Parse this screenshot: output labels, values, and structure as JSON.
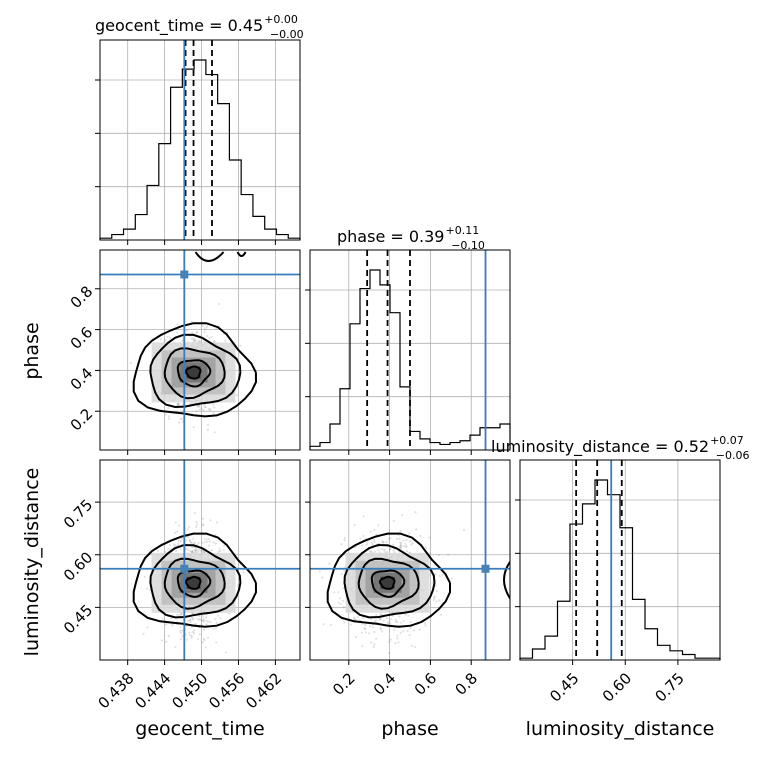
{
  "chart_data": {
    "type": "corner",
    "parameters": [
      {
        "key": "geocent_time",
        "label": "geocent_time",
        "title_main": "geocent_time = 0.45",
        "title_plus": "+0.00",
        "title_minus": "−0.00",
        "median": 0.4487,
        "q_low": 0.4474,
        "q_high": 0.4517,
        "truth": 0.4472,
        "range": [
          0.4335,
          0.466
        ],
        "ticks": [
          0.438,
          0.444,
          0.45,
          0.456,
          0.462
        ],
        "tick_labels": [
          "0.438",
          "0.444",
          "0.450",
          "0.456",
          "0.462"
        ],
        "hist_counts": [
          1,
          3,
          6,
          14,
          30,
          53,
          84,
          94,
          99,
          91,
          75,
          44,
          25,
          13,
          6,
          3,
          1
        ]
      },
      {
        "key": "phase",
        "label": "phase",
        "title_main": "phase = 0.39",
        "title_plus": "+0.11",
        "title_minus": "−0.10",
        "median": 0.39,
        "q_low": 0.29,
        "q_high": 0.5,
        "truth": 0.87,
        "range": [
          0.01,
          0.99
        ],
        "ticks": [
          0.2,
          0.4,
          0.6,
          0.8
        ],
        "tick_labels": [
          "0.2",
          "0.4",
          "0.6",
          "0.8"
        ],
        "hist_counts": [
          2,
          4,
          14,
          33,
          68,
          87,
          97,
          89,
          74,
          34,
          10,
          6,
          4,
          3,
          4,
          5,
          8,
          12,
          12,
          14
        ]
      },
      {
        "key": "luminosity_distance",
        "label": "luminosity_distance",
        "title_main": "luminosity_distance = 0.52",
        "title_plus": "+0.07",
        "title_minus": "−0.06",
        "median": 0.52,
        "q_low": 0.46,
        "q_high": 0.59,
        "truth": 0.56,
        "range": [
          0.3,
          0.87
        ],
        "ticks": [
          0.45,
          0.6,
          0.75
        ],
        "tick_labels": [
          "0.45",
          "0.60",
          "0.75"
        ],
        "hist_counts": [
          1,
          6,
          13,
          32,
          74,
          85,
          98,
          90,
          72,
          33,
          17,
          8,
          5,
          3,
          1,
          1
        ]
      }
    ],
    "pairs": [
      {
        "row": 1,
        "col": 0,
        "label": "phase vs geocent_time",
        "center": [
          0.4487,
          0.39
        ],
        "spread": [
          0.0022,
          0.085
        ]
      },
      {
        "row": 2,
        "col": 0,
        "label": "luminosity_distance vs geocent_time",
        "center": [
          0.4487,
          0.52
        ],
        "spread": [
          0.0022,
          0.06
        ]
      },
      {
        "row": 2,
        "col": 1,
        "label": "luminosity_distance vs phase",
        "center": [
          0.39,
          0.52
        ],
        "spread": [
          0.09,
          0.06
        ]
      }
    ],
    "grid": true,
    "colors": {
      "truth": "#4682b4",
      "hist": "#000000",
      "scatter": "#888888"
    }
  }
}
